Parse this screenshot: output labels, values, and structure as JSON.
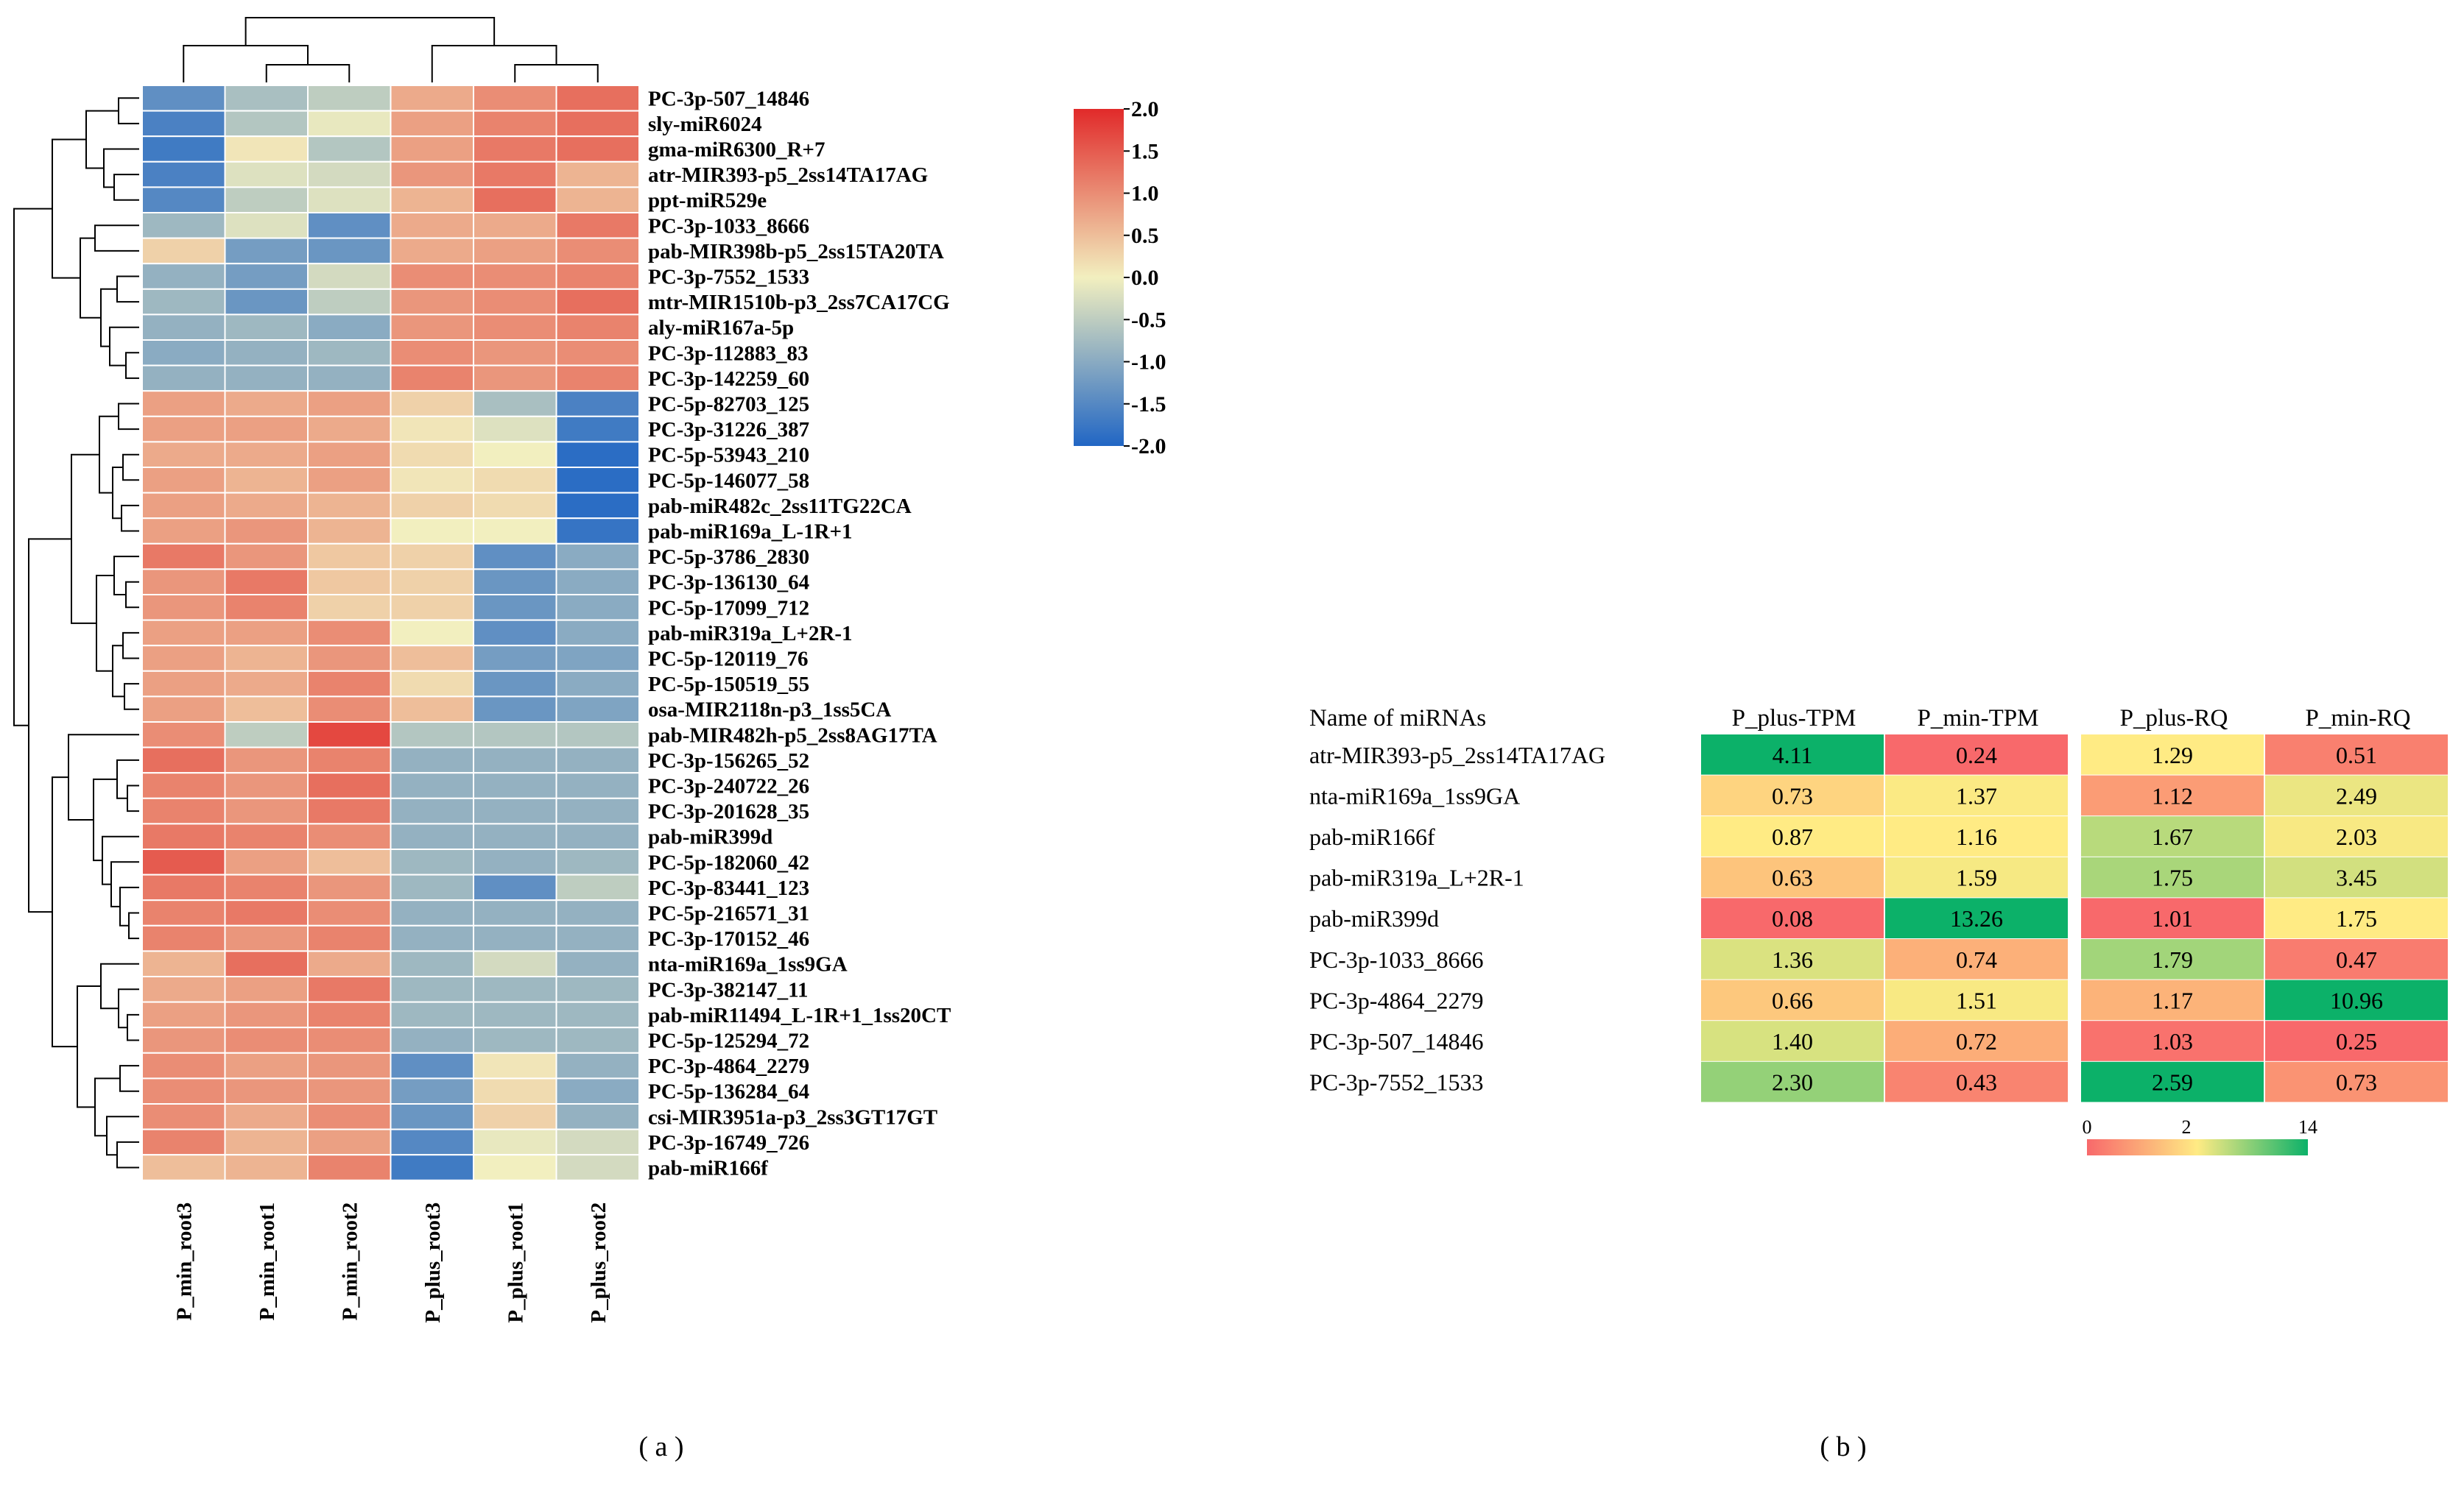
{
  "colors": {
    "heat_low": "#2166c4",
    "heat_mid": "#f2efbf",
    "heat_high": "#e12a2a",
    "table_low": "#f8696b",
    "table_mid": "#ffeb84",
    "table_high": "#0cb169"
  },
  "panel_labels": {
    "a": "( a )",
    "b": "( b )"
  },
  "chart_data": [
    {
      "type": "heatmap",
      "title": "",
      "columns": [
        "P_min_root3",
        "P_min_root1",
        "P_min_root2",
        "P_plus_root3",
        "P_plus_root1",
        "P_plus_root2"
      ],
      "rows": [
        "PC-3p-507_14846",
        "sly-miR6024",
        "gma-miR6300_R+7",
        "atr-MIR393-p5_2ss14TA17AG",
        "ppt-miR529e",
        "PC-3p-1033_8666",
        "pab-MIR398b-p5_2ss15TA20TA",
        "PC-3p-7552_1533",
        "mtr-MIR1510b-p3_2ss7CA17CG",
        "aly-miR167a-5p",
        "PC-3p-112883_83",
        "PC-3p-142259_60",
        "PC-5p-82703_125",
        "PC-3p-31226_387",
        "PC-5p-53943_210",
        "PC-5p-146077_58",
        "pab-miR482c_2ss11TG22CA",
        "pab-miR169a_L-1R+1",
        "PC-5p-3786_2830",
        "PC-3p-136130_64",
        "PC-5p-17099_712",
        "pab-miR319a_L+2R-1",
        "PC-5p-120119_76",
        "PC-5p-150519_55",
        "osa-MIR2118n-p3_1ss5CA",
        "pab-MIR482h-p5_2ss8AG17TA",
        "PC-3p-156265_52",
        "PC-3p-240722_26",
        "PC-3p-201628_35",
        "pab-miR399d",
        "PC-5p-182060_42",
        "PC-3p-83441_123",
        "PC-5p-216571_31",
        "PC-3p-170152_46",
        "nta-miR169a_1ss9GA",
        "PC-3p-382147_11",
        "pab-miR11494_L-1R+1_1ss20CT",
        "PC-5p-125294_72",
        "PC-3p-4864_2279",
        "PC-5p-136284_64",
        "csi-MIR3951a-p3_2ss3GT17GT",
        "PC-3p-16749_726",
        "pab-miR166f"
      ],
      "values": [
        [
          -1.4,
          -0.7,
          -0.5,
          0.7,
          1.0,
          1.3
        ],
        [
          -1.6,
          -0.6,
          -0.1,
          0.8,
          1.1,
          1.3
        ],
        [
          -1.7,
          0.1,
          -0.6,
          0.8,
          1.2,
          1.3
        ],
        [
          -1.6,
          -0.2,
          -0.3,
          0.9,
          1.2,
          0.6
        ],
        [
          -1.5,
          -0.5,
          -0.2,
          0.6,
          1.3,
          0.6
        ],
        [
          -0.8,
          -0.2,
          -1.4,
          0.7,
          0.7,
          1.2
        ],
        [
          0.3,
          -1.2,
          -1.3,
          0.7,
          0.8,
          1.0
        ],
        [
          -0.9,
          -1.2,
          -0.3,
          1.0,
          1.0,
          1.1
        ],
        [
          -0.8,
          -1.3,
          -0.5,
          0.9,
          1.0,
          1.3
        ],
        [
          -0.9,
          -0.8,
          -1.0,
          0.9,
          1.0,
          1.1
        ],
        [
          -1.0,
          -0.9,
          -0.8,
          1.0,
          0.9,
          1.0
        ],
        [
          -0.9,
          -0.9,
          -0.9,
          1.1,
          0.9,
          1.1
        ],
        [
          0.8,
          0.7,
          0.8,
          0.3,
          -0.7,
          -1.6
        ],
        [
          0.8,
          0.8,
          0.7,
          0.1,
          -0.2,
          -1.7
        ],
        [
          0.7,
          0.7,
          0.8,
          0.2,
          0.0,
          -1.9
        ],
        [
          0.8,
          0.6,
          0.8,
          0.1,
          0.2,
          -1.9
        ],
        [
          0.8,
          0.7,
          0.6,
          0.3,
          0.2,
          -1.9
        ],
        [
          0.8,
          0.9,
          0.6,
          0.0,
          0.0,
          -1.8
        ],
        [
          1.2,
          0.9,
          0.4,
          0.3,
          -1.4,
          -1.0
        ],
        [
          0.9,
          1.2,
          0.4,
          0.3,
          -1.3,
          -1.0
        ],
        [
          0.9,
          1.1,
          0.3,
          0.3,
          -1.3,
          -1.0
        ],
        [
          0.8,
          0.8,
          1.0,
          0.0,
          -1.4,
          -1.0
        ],
        [
          0.8,
          0.6,
          0.9,
          0.5,
          -1.2,
          -1.1
        ],
        [
          0.8,
          0.7,
          1.1,
          0.2,
          -1.3,
          -1.0
        ],
        [
          0.8,
          0.5,
          1.0,
          0.5,
          -1.3,
          -1.1
        ],
        [
          1.0,
          -0.5,
          1.7,
          -0.6,
          -0.6,
          -0.6
        ],
        [
          1.3,
          0.9,
          1.1,
          -0.9,
          -0.9,
          -0.9
        ],
        [
          1.1,
          0.9,
          1.3,
          -0.9,
          -0.9,
          -0.9
        ],
        [
          1.1,
          0.9,
          1.2,
          -0.9,
          -0.9,
          -0.9
        ],
        [
          1.2,
          1.1,
          1.0,
          -0.9,
          -0.9,
          -0.9
        ],
        [
          1.5,
          0.8,
          0.5,
          -0.8,
          -0.9,
          -0.8
        ],
        [
          1.2,
          1.1,
          0.9,
          -0.8,
          -1.4,
          -0.5
        ],
        [
          1.1,
          1.2,
          1.0,
          -0.9,
          -0.9,
          -0.9
        ],
        [
          1.1,
          0.9,
          1.1,
          -0.9,
          -0.9,
          -0.9
        ],
        [
          0.6,
          1.3,
          0.7,
          -0.8,
          -0.3,
          -0.9
        ],
        [
          0.7,
          0.8,
          1.2,
          -0.8,
          -0.8,
          -0.8
        ],
        [
          0.8,
          0.9,
          1.1,
          -0.8,
          -0.8,
          -0.8
        ],
        [
          0.9,
          1.0,
          1.0,
          -0.9,
          -0.8,
          -0.8
        ],
        [
          1.0,
          0.8,
          0.9,
          -1.4,
          0.1,
          -0.9
        ],
        [
          1.0,
          0.9,
          0.9,
          -1.2,
          0.2,
          -1.0
        ],
        [
          1.0,
          0.7,
          1.0,
          -1.3,
          0.3,
          -0.9
        ],
        [
          1.1,
          0.6,
          0.8,
          -1.5,
          -0.1,
          -0.3
        ],
        [
          0.5,
          0.6,
          1.1,
          -1.7,
          0.0,
          -0.3
        ]
      ],
      "colorbar": {
        "min": -2.0,
        "max": 2.0,
        "ticks": [
          "2.0",
          "1.5",
          "1.0",
          "0.5",
          "0.0",
          "-0.5",
          "-1.0",
          "-1.5",
          "-2.0"
        ]
      }
    },
    {
      "type": "table",
      "header": [
        "Name of miRNAs",
        "P_plus-TPM",
        "P_min-TPM",
        "P_plus-RQ",
        "P_min-RQ"
      ],
      "rows": [
        {
          "name": "atr-MIR393-p5_2ss14TA17AG",
          "values": [
            "4.11",
            "0.24",
            "1.29",
            "0.51"
          ]
        },
        {
          "name": "nta-miR169a_1ss9GA",
          "values": [
            "0.73",
            "1.37",
            "1.12",
            "2.49"
          ]
        },
        {
          "name": "pab-miR166f",
          "values": [
            "0.87",
            "1.16",
            "1.67",
            "2.03"
          ]
        },
        {
          "name": "pab-miR319a_L+2R-1",
          "values": [
            "0.63",
            "1.59",
            "1.75",
            "3.45"
          ]
        },
        {
          "name": "pab-miR399d",
          "values": [
            "0.08",
            "13.26",
            "1.01",
            "1.75"
          ]
        },
        {
          "name": "PC-3p-1033_8666",
          "values": [
            "1.36",
            "0.74",
            "1.79",
            "0.47"
          ]
        },
        {
          "name": "PC-3p-4864_2279",
          "values": [
            "0.66",
            "1.51",
            "1.17",
            "10.96"
          ]
        },
        {
          "name": "PC-3p-507_14846",
          "values": [
            "1.40",
            "0.72",
            "1.03",
            "0.25"
          ]
        },
        {
          "name": "PC-3p-7552_1533",
          "values": [
            "2.30",
            "0.43",
            "2.59",
            "0.73"
          ]
        }
      ],
      "colorbar": {
        "ticks": [
          "0",
          "2",
          "14"
        ]
      }
    }
  ]
}
